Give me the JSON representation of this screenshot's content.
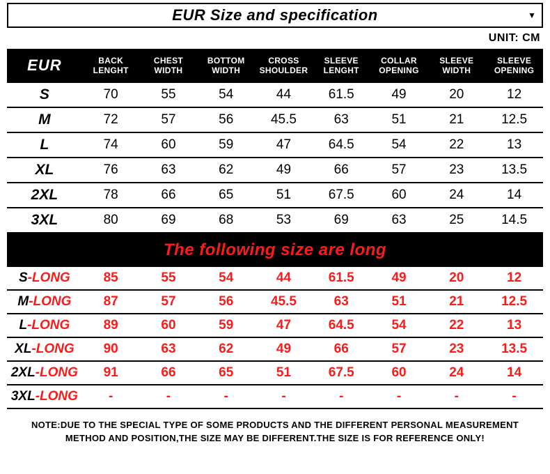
{
  "title": "EUR  Size and specification",
  "unit_label": "UNIT: CM",
  "header": {
    "first": "EUR",
    "cols": [
      "BACK LENGHT",
      "CHEST WIDTH",
      "BOTTOM WIDTH",
      "CROSS SHOULDER",
      "SLEEVE LENGHT",
      "COLLAR OPENING",
      "SLEEVE WIDTH",
      "SLEEVE OPENING"
    ]
  },
  "rows_normal": [
    {
      "size": "S",
      "v": [
        "70",
        "55",
        "54",
        "44",
        "61.5",
        "49",
        "20",
        "12"
      ]
    },
    {
      "size": "M",
      "v": [
        "72",
        "57",
        "56",
        "45.5",
        "63",
        "51",
        "21",
        "12.5"
      ]
    },
    {
      "size": "L",
      "v": [
        "74",
        "60",
        "59",
        "47",
        "64.5",
        "54",
        "22",
        "13"
      ]
    },
    {
      "size": "XL",
      "v": [
        "76",
        "63",
        "62",
        "49",
        "66",
        "57",
        "23",
        "13.5"
      ]
    },
    {
      "size": "2XL",
      "v": [
        "78",
        "66",
        "65",
        "51",
        "67.5",
        "60",
        "24",
        "14"
      ]
    },
    {
      "size": "3XL",
      "v": [
        "80",
        "69",
        "68",
        "53",
        "69",
        "63",
        "25",
        "14.5"
      ]
    }
  ],
  "banner": "The following size are long",
  "rows_long": [
    {
      "base": "S",
      "suffix": "-LONG",
      "v": [
        "85",
        "55",
        "54",
        "44",
        "61.5",
        "49",
        "20",
        "12"
      ]
    },
    {
      "base": "M",
      "suffix": "-LONG",
      "v": [
        "87",
        "57",
        "56",
        "45.5",
        "63",
        "51",
        "21",
        "12.5"
      ]
    },
    {
      "base": "L",
      "suffix": "-LONG",
      "v": [
        "89",
        "60",
        "59",
        "47",
        "64.5",
        "54",
        "22",
        "13"
      ]
    },
    {
      "base": "XL",
      "suffix": "-LONG",
      "v": [
        "90",
        "63",
        "62",
        "49",
        "66",
        "57",
        "23",
        "13.5"
      ]
    },
    {
      "base": "2XL",
      "suffix": "-LONG",
      "v": [
        "91",
        "66",
        "65",
        "51",
        "67.5",
        "60",
        "24",
        "14"
      ]
    },
    {
      "base": "3XL",
      "suffix": "-LONG",
      "v": [
        "-",
        "-",
        "-",
        "-",
        "-",
        "-",
        "-",
        "-"
      ]
    }
  ],
  "note_line1": "NOTE:DUE TO THE SPECIAL TYPE OF SOME PRODUCTS AND THE DIFFERENT PERSONAL MEASUREMENT",
  "note_line2": "METHOD AND POSITION,THE SIZE MAY BE DIFFERENT.THE SIZE IS FOR REFERENCE ONLY!",
  "colors": {
    "accent_red": "#ff1a1a",
    "black": "#000000",
    "white": "#ffffff"
  },
  "col_widths_pct": [
    14,
    10.75,
    10.75,
    10.75,
    10.75,
    10.75,
    10.75,
    10.75,
    10.75
  ]
}
